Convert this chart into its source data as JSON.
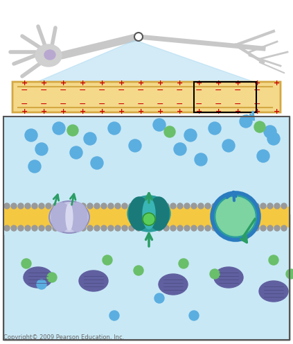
{
  "figsize": [
    4.23,
    4.96
  ],
  "dpi": 100,
  "bg_color": "#ffffff",
  "neuron_color": "#cccccc",
  "axon_fill": "#f5d98a",
  "axon_border": "#d4a843",
  "plus_color": "#cc0000",
  "minus_color": "#cc0000",
  "extracellular_bg": "#c8e8f5",
  "intracellular_bg": "#f5deb3",
  "membrane_yellow": "#f5c842",
  "membrane_gray": "#888888",
  "na_ion_color": "#5baee0",
  "k_ion_color": "#6abf6a",
  "protein_color": "#8888cc",
  "channel1_color": "#b0b8e8",
  "channel2_color": "#2a9d9d",
  "pump_circle_color": "#7dd4a0",
  "pump_ring_color": "#2a9d9d",
  "arrow_green": "#2a9d64",
  "arrow_blue": "#2a7bbf",
  "copyright_text": "Copyright© 2009 Pearson Education, Inc.",
  "copyright_fontsize": 6
}
